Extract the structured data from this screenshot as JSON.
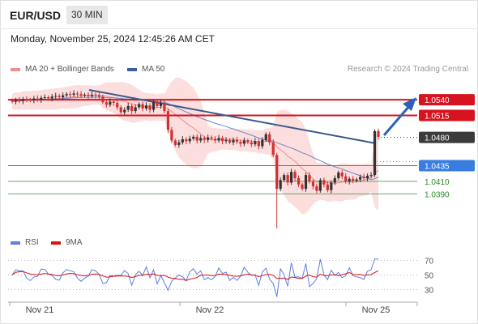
{
  "header": {
    "symbol": "EUR/USD",
    "timeframe": "30 MIN",
    "timestamp": "Monday, November 25, 2024 12:45:26 AM CET"
  },
  "legend": {
    "main": [
      {
        "label": "MA 20 + Bollinger Bands",
        "color": "#f08c8c"
      },
      {
        "label": "MA 50",
        "color": "#3b5ea6"
      }
    ],
    "rsi": [
      {
        "label": "RSI",
        "color": "#5b7fe0"
      },
      {
        "label": "9MA",
        "color": "#dd1111"
      }
    ]
  },
  "credit": "Research © 2024 Trading Central",
  "colors": {
    "resistance": "#d6131e",
    "support": "#3a7de0",
    "pivot": "#3b3b3b",
    "target_green": "#2a8a2a",
    "candle_red": "#d32f2f",
    "candle_dark": "#333333",
    "trend": "#3c5a8a",
    "arrow": "#2c62b5",
    "bollinger": "#fbd6d6",
    "ma20": "#f08c8c",
    "ma50": "#6f86c4"
  },
  "chart_data": [
    {
      "type": "candlestick",
      "title": "EUR/USD 30 MIN",
      "x_tick_labels": [
        "Nov 21",
        "Nov 22",
        "Nov 25"
      ],
      "price_levels": [
        {
          "value": 1.054,
          "label": "1.0540",
          "role": "resistance"
        },
        {
          "value": 1.0515,
          "label": "1.0515",
          "role": "resistance"
        },
        {
          "value": 1.048,
          "label": "1.0480",
          "role": "pivot"
        },
        {
          "value": 1.0435,
          "label": "1.0435",
          "role": "support"
        },
        {
          "value": 1.041,
          "label": "1.0410",
          "role": "target"
        },
        {
          "value": 1.039,
          "label": "1.0390",
          "role": "target"
        }
      ],
      "candles_close": [
        1.0537,
        1.0539,
        1.0538,
        1.0541,
        1.054,
        1.0539,
        1.0542,
        1.054,
        1.0543,
        1.0544,
        1.0542,
        1.0545,
        1.0546,
        1.0544,
        1.0547,
        1.0549,
        1.0548,
        1.055,
        1.0549,
        1.0547,
        1.0548,
        1.0546,
        1.0548,
        1.0547,
        1.0545,
        1.0536,
        1.0532,
        1.0537,
        1.0535,
        1.0528,
        1.052,
        1.0524,
        1.053,
        1.0522,
        1.0528,
        1.0533,
        1.0526,
        1.0531,
        1.0524,
        1.0536,
        1.053,
        1.0535,
        1.0522,
        1.0492,
        1.0475,
        1.0468,
        1.0472,
        1.0477,
        1.0474,
        1.0478,
        1.0481,
        1.0475,
        1.0479,
        1.0476,
        1.048,
        1.0478,
        1.0475,
        1.0479,
        1.0474,
        1.0476,
        1.0472,
        1.0476,
        1.0473,
        1.047,
        1.0475,
        1.0472,
        1.0469,
        1.0474,
        1.0466,
        1.0476,
        1.0485,
        1.0472,
        1.0452,
        1.0398,
        1.0412,
        1.042,
        1.0408,
        1.0425,
        1.0415,
        1.0405,
        1.0398,
        1.042,
        1.041,
        1.0402,
        1.0395,
        1.0412,
        1.0405,
        1.0396,
        1.0408,
        1.0415,
        1.0424,
        1.0418,
        1.041,
        1.0414,
        1.0411,
        1.0413,
        1.0417,
        1.0415,
        1.0419,
        1.042,
        1.049,
        1.0481
      ],
      "ylim": [
        1.0335,
        1.0575
      ]
    },
    {
      "type": "line",
      "title": "RSI",
      "series": [
        {
          "name": "RSI"
        },
        {
          "name": "9MA"
        }
      ],
      "y_tick_labels": [
        "70",
        "50",
        "30"
      ],
      "ylim": [
        15,
        85
      ]
    }
  ]
}
